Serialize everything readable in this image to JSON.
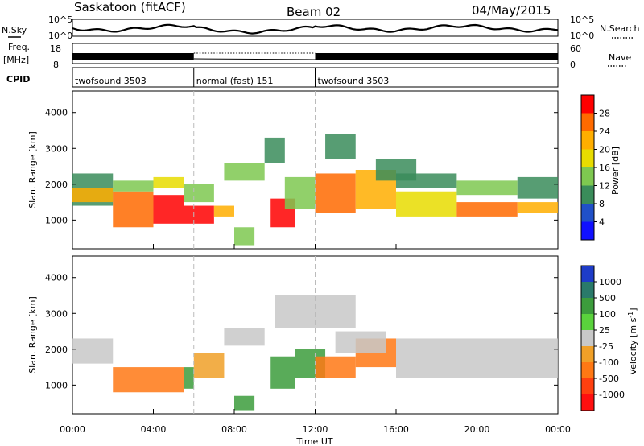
{
  "header": {
    "station": "Saskatoon (fitACF)",
    "beam": "Beam 02",
    "date": "04/May/2015"
  },
  "noise_panel": {
    "left_label": "N.Sky",
    "right_label": "N.Search",
    "y_ticks": [
      "10^5",
      "10^0"
    ]
  },
  "freq_panel": {
    "left_label_1": "Freq.",
    "left_label_2": "[MHz]",
    "right_label": "Nave",
    "left_ticks": [
      "18",
      "8"
    ],
    "right_ticks": [
      "60",
      "0"
    ]
  },
  "cpid_panel": {
    "label": "CPID",
    "segments": [
      {
        "label": "twofsound 3503",
        "start": 0,
        "end": 6
      },
      {
        "label": "normal (fast) 151",
        "start": 6,
        "end": 12
      },
      {
        "label": "twofsound 3503",
        "start": 12,
        "end": 24
      }
    ]
  },
  "power_colorbar": {
    "label": "Power [dB]",
    "ticks": [
      "28",
      "24",
      "20",
      "16",
      "12",
      "8",
      "4"
    ],
    "colors": [
      "#ff0000",
      "#ff6a00",
      "#ffae00",
      "#e8dc00",
      "#7ec850",
      "#3a8c5a",
      "#2050c8",
      "#1010ff"
    ]
  },
  "velocity_colorbar": {
    "label": "Velocity [m s",
    "label_sup": "-1",
    "label_end": "]",
    "ticks": [
      "1000",
      "500",
      "100",
      "25",
      "-25",
      "-100",
      "-500",
      "-1000"
    ],
    "colors": [
      "#1e3cc8",
      "#2a7a6a",
      "#3c9c3c",
      "#5ad23c",
      "#c8c8c8",
      "#f0a028",
      "#ff7814",
      "#ff4010",
      "#ff1010"
    ]
  },
  "x_axis": {
    "label": "Time UT",
    "ticks": [
      "00:00",
      "04:00",
      "08:00",
      "12:00",
      "16:00",
      "20:00",
      "00:00"
    ]
  },
  "y_axis": {
    "label": "Slant Range [km]",
    "ticks": [
      "1000",
      "2000",
      "3000",
      "4000"
    ]
  },
  "chart_data": [
    {
      "type": "heatmap",
      "title": "Power",
      "xlabel": "Time UT",
      "ylabel": "Slant Range [km]",
      "xlim": [
        0,
        24
      ],
      "ylim": [
        200,
        4600
      ],
      "zlabel": "Power [dB]",
      "zlim": [
        0,
        30
      ],
      "cells": [
        [
          0.0,
          2.0,
          1400,
          2300,
          10
        ],
        [
          0.0,
          2.0,
          1500,
          1900,
          20
        ],
        [
          2.0,
          4.0,
          800,
          1800,
          26
        ],
        [
          2.0,
          4.0,
          1800,
          2100,
          12
        ],
        [
          4.0,
          5.5,
          900,
          1700,
          27
        ],
        [
          4.0,
          5.5,
          1900,
          2200,
          16
        ],
        [
          5.5,
          7.0,
          900,
          1400,
          28
        ],
        [
          5.5,
          7.0,
          1500,
          2000,
          14
        ],
        [
          7.0,
          8.0,
          1100,
          1400,
          22
        ],
        [
          7.5,
          9.5,
          2100,
          2600,
          14
        ],
        [
          8.0,
          9.0,
          300,
          800,
          14
        ],
        [
          9.5,
          10.5,
          2600,
          3300,
          8
        ],
        [
          9.8,
          11.0,
          800,
          1600,
          29
        ],
        [
          10.5,
          12.0,
          1300,
          2200,
          12
        ],
        [
          12.0,
          14.0,
          1200,
          2300,
          26
        ],
        [
          12.5,
          14.0,
          2700,
          3400,
          8
        ],
        [
          14.0,
          16.0,
          1300,
          2400,
          22
        ],
        [
          15.0,
          17.0,
          2100,
          2700,
          10
        ],
        [
          16.0,
          19.0,
          1100,
          1800,
          18
        ],
        [
          16.0,
          19.0,
          1900,
          2300,
          10
        ],
        [
          19.0,
          22.0,
          1100,
          1500,
          24
        ],
        [
          19.0,
          22.0,
          1700,
          2100,
          12
        ],
        [
          22.0,
          24.0,
          1200,
          1500,
          22
        ],
        [
          22.0,
          24.0,
          1600,
          2200,
          10
        ]
      ]
    },
    {
      "type": "heatmap",
      "title": "Velocity",
      "xlabel": "Time UT",
      "ylabel": "Slant Range [km]",
      "xlim": [
        0,
        24
      ],
      "ylim": [
        200,
        4600
      ],
      "zlabel": "Velocity [m s-1]",
      "zlim": [
        -1000,
        1000
      ],
      "cells": [
        [
          0.0,
          2.0,
          1600,
          2300,
          0
        ],
        [
          2.0,
          4.0,
          800,
          1500,
          -120
        ],
        [
          4.0,
          5.5,
          800,
          1500,
          -150
        ],
        [
          5.5,
          6.0,
          900,
          1500,
          150
        ],
        [
          6.0,
          7.5,
          1200,
          1900,
          -40
        ],
        [
          7.5,
          9.5,
          2100,
          2600,
          0
        ],
        [
          8.0,
          9.0,
          300,
          700,
          120
        ],
        [
          9.8,
          11.0,
          900,
          1800,
          140
        ],
        [
          11.0,
          12.5,
          1200,
          2000,
          120
        ],
        [
          12.0,
          14.0,
          1200,
          1800,
          -150
        ],
        [
          14.0,
          16.0,
          1500,
          2300,
          -200
        ],
        [
          13.0,
          15.5,
          1900,
          2500,
          0
        ],
        [
          16.0,
          24.0,
          1200,
          2300,
          0
        ],
        [
          10.0,
          14.0,
          2600,
          3500,
          0
        ]
      ]
    }
  ]
}
